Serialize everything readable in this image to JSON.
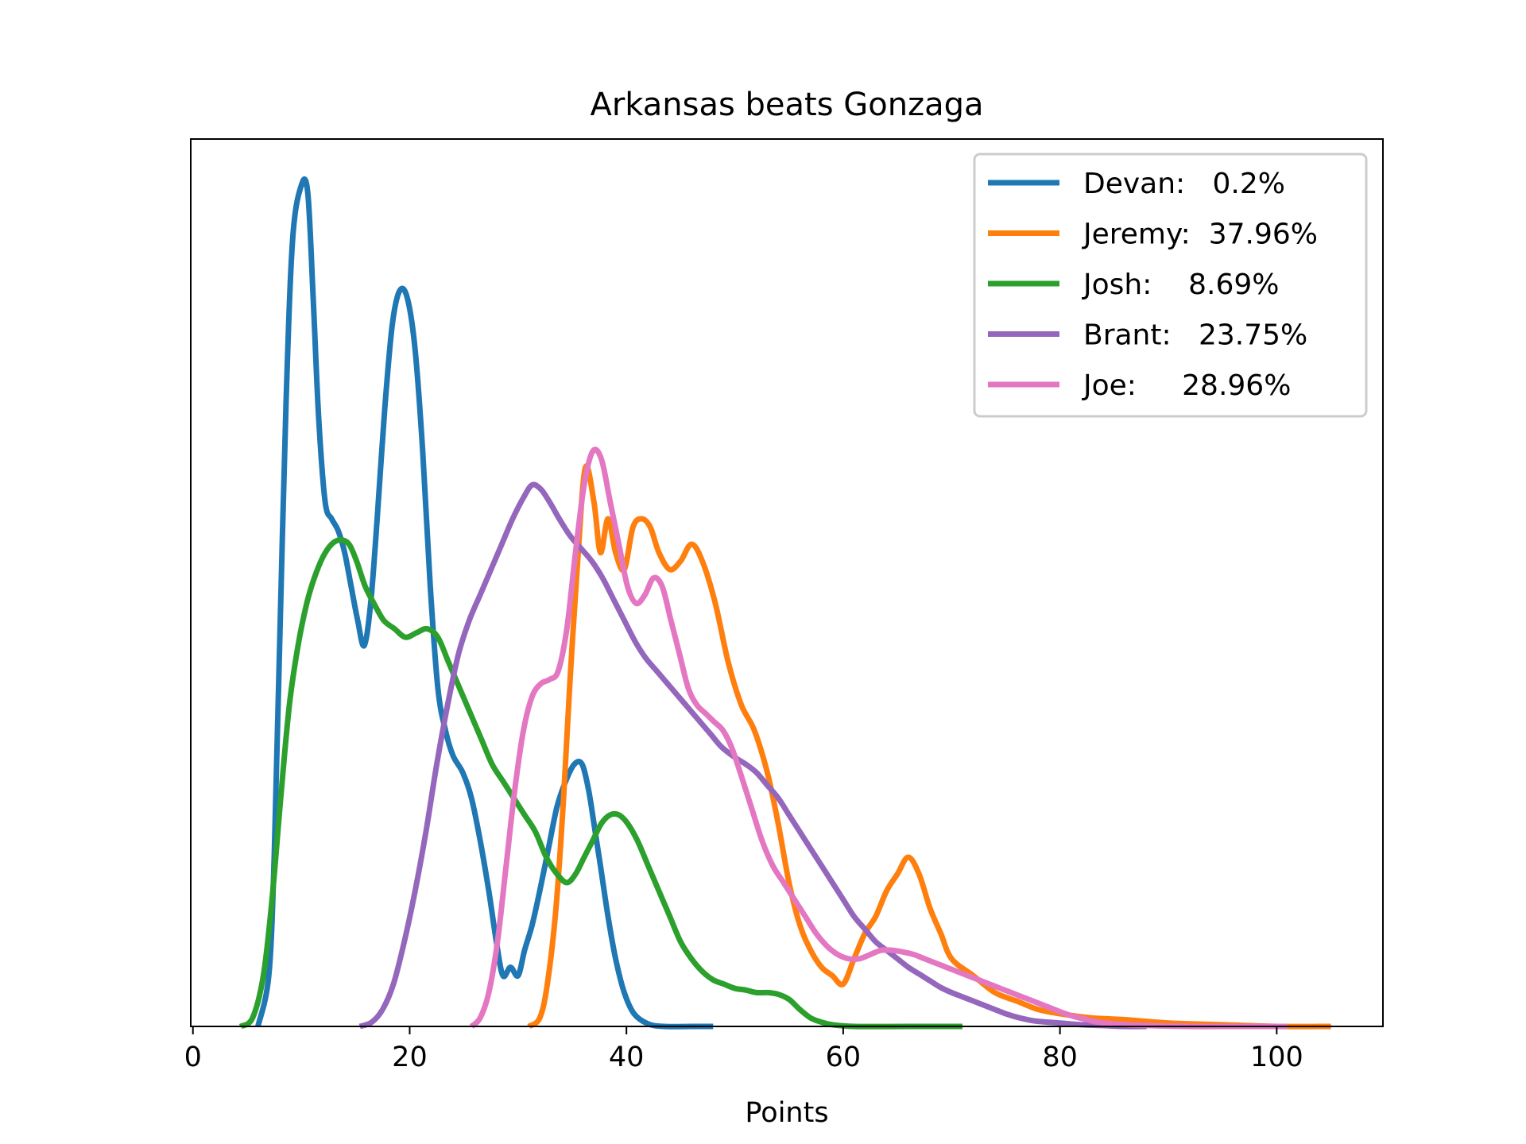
{
  "chart_data": {
    "type": "line",
    "title": "Arkansas beats Gonzaga",
    "xlabel": "Points",
    "ylabel": "",
    "xlim": [
      -0.2,
      109.8
    ],
    "ylim": [
      0,
      1
    ],
    "xticks": [
      0,
      20,
      40,
      60,
      80,
      100
    ],
    "xtick_labels": [
      "0",
      "20",
      "40",
      "60",
      "80",
      "100"
    ],
    "yticks_shown": false,
    "grid": false,
    "legend_position": "top-right",
    "series": [
      {
        "name": "Devan",
        "legend_label": "Devan:   0.2%",
        "color": "#1f77b4",
        "points": [
          [
            6,
            0.0
          ],
          [
            7,
            0.06
          ],
          [
            7.5,
            0.2
          ],
          [
            8,
            0.45
          ],
          [
            8.6,
            0.74
          ],
          [
            9.2,
            0.93
          ],
          [
            10,
            0.994
          ],
          [
            10.6,
            0.985
          ],
          [
            11.1,
            0.86
          ],
          [
            11.6,
            0.72
          ],
          [
            12.2,
            0.62
          ],
          [
            12.8,
            0.6
          ],
          [
            13.4,
            0.586
          ],
          [
            14,
            0.56
          ],
          [
            14.6,
            0.52
          ],
          [
            15.2,
            0.48
          ],
          [
            15.8,
            0.45
          ],
          [
            16.4,
            0.5
          ],
          [
            17,
            0.6
          ],
          [
            17.7,
            0.73
          ],
          [
            18.4,
            0.83
          ],
          [
            19.1,
            0.87
          ],
          [
            19.8,
            0.86
          ],
          [
            20.5,
            0.8
          ],
          [
            21.2,
            0.68
          ],
          [
            21.9,
            0.52
          ],
          [
            22.6,
            0.4
          ],
          [
            23.3,
            0.35
          ],
          [
            24,
            0.32
          ],
          [
            24.9,
            0.3
          ],
          [
            25.7,
            0.27
          ],
          [
            26.5,
            0.22
          ],
          [
            27.3,
            0.16
          ],
          [
            28,
            0.1
          ],
          [
            28.6,
            0.06
          ],
          [
            29.3,
            0.07
          ],
          [
            30,
            0.06
          ],
          [
            30.6,
            0.09
          ],
          [
            31.3,
            0.12
          ],
          [
            32,
            0.16
          ],
          [
            32.8,
            0.21
          ],
          [
            33.6,
            0.26
          ],
          [
            34.4,
            0.29
          ],
          [
            35.2,
            0.31
          ],
          [
            35.9,
            0.31
          ],
          [
            36.5,
            0.28
          ],
          [
            37,
            0.24
          ],
          [
            37.6,
            0.19
          ],
          [
            38.3,
            0.13
          ],
          [
            39,
            0.08
          ],
          [
            39.8,
            0.04
          ],
          [
            40.7,
            0.015
          ],
          [
            42,
            0.003
          ],
          [
            43.5,
            0.0
          ],
          [
            46,
            0.0
          ],
          [
            48,
            0.0
          ]
        ]
      },
      {
        "name": "Jeremy",
        "legend_label": "Jeremy:  37.96%",
        "color": "#ff7f0e",
        "points": [
          [
            31,
            0.0
          ],
          [
            32,
            0.01
          ],
          [
            32.7,
            0.05
          ],
          [
            33.5,
            0.14
          ],
          [
            34.2,
            0.27
          ],
          [
            34.8,
            0.41
          ],
          [
            35.5,
            0.55
          ],
          [
            36.2,
            0.66
          ],
          [
            37,
            0.62
          ],
          [
            37.6,
            0.56
          ],
          [
            38.3,
            0.6
          ],
          [
            39,
            0.56
          ],
          [
            39.8,
            0.54
          ],
          [
            40.6,
            0.59
          ],
          [
            41.4,
            0.6
          ],
          [
            42.2,
            0.59
          ],
          [
            43,
            0.56
          ],
          [
            44,
            0.54
          ],
          [
            45,
            0.55
          ],
          [
            46,
            0.57
          ],
          [
            47,
            0.55
          ],
          [
            48.2,
            0.5
          ],
          [
            49.4,
            0.43
          ],
          [
            50.6,
            0.38
          ],
          [
            51.8,
            0.35
          ],
          [
            53,
            0.3
          ],
          [
            54,
            0.24
          ],
          [
            55,
            0.17
          ],
          [
            56,
            0.12
          ],
          [
            57,
            0.09
          ],
          [
            58,
            0.07
          ],
          [
            59,
            0.06
          ],
          [
            60,
            0.05
          ],
          [
            61,
            0.08
          ],
          [
            62,
            0.11
          ],
          [
            63,
            0.13
          ],
          [
            64,
            0.16
          ],
          [
            65,
            0.18
          ],
          [
            66,
            0.2
          ],
          [
            67,
            0.18
          ],
          [
            68,
            0.14
          ],
          [
            69,
            0.11
          ],
          [
            70,
            0.08
          ],
          [
            72,
            0.06
          ],
          [
            74,
            0.04
          ],
          [
            76,
            0.03
          ],
          [
            78,
            0.02
          ],
          [
            80,
            0.015
          ],
          [
            83,
            0.01
          ],
          [
            86,
            0.008
          ],
          [
            90,
            0.004
          ],
          [
            95,
            0.002
          ],
          [
            100,
            0.0
          ],
          [
            105,
            0.0
          ]
        ]
      },
      {
        "name": "Josh",
        "legend_label": "Josh:    8.69%",
        "color": "#2ca02c",
        "points": [
          [
            4.4,
            0.0
          ],
          [
            5.5,
            0.01
          ],
          [
            6.5,
            0.06
          ],
          [
            7.3,
            0.15
          ],
          [
            8.1,
            0.27
          ],
          [
            8.9,
            0.38
          ],
          [
            9.7,
            0.45
          ],
          [
            10.5,
            0.5
          ],
          [
            11.2,
            0.53
          ],
          [
            12,
            0.555
          ],
          [
            12.8,
            0.57
          ],
          [
            13.6,
            0.575
          ],
          [
            14.4,
            0.57
          ],
          [
            15.1,
            0.55
          ],
          [
            15.9,
            0.52
          ],
          [
            16.7,
            0.5
          ],
          [
            17.6,
            0.48
          ],
          [
            18.6,
            0.47
          ],
          [
            19.6,
            0.46
          ],
          [
            20.6,
            0.465
          ],
          [
            21.6,
            0.47
          ],
          [
            22.6,
            0.46
          ],
          [
            23.6,
            0.43
          ],
          [
            24.6,
            0.4
          ],
          [
            25.6,
            0.37
          ],
          [
            26.6,
            0.34
          ],
          [
            27.6,
            0.31
          ],
          [
            28.6,
            0.29
          ],
          [
            29.6,
            0.27
          ],
          [
            30.6,
            0.25
          ],
          [
            31.6,
            0.23
          ],
          [
            32.6,
            0.2
          ],
          [
            33.6,
            0.18
          ],
          [
            34.5,
            0.17
          ],
          [
            35.3,
            0.18
          ],
          [
            36.1,
            0.2
          ],
          [
            36.9,
            0.22
          ],
          [
            37.7,
            0.24
          ],
          [
            38.5,
            0.25
          ],
          [
            39.3,
            0.25
          ],
          [
            40.1,
            0.24
          ],
          [
            41,
            0.22
          ],
          [
            42,
            0.19
          ],
          [
            43,
            0.16
          ],
          [
            44,
            0.13
          ],
          [
            45,
            0.1
          ],
          [
            46,
            0.08
          ],
          [
            47,
            0.065
          ],
          [
            48,
            0.055
          ],
          [
            49,
            0.05
          ],
          [
            50,
            0.045
          ],
          [
            51,
            0.043
          ],
          [
            52,
            0.04
          ],
          [
            53,
            0.04
          ],
          [
            54,
            0.038
          ],
          [
            55,
            0.032
          ],
          [
            56,
            0.02
          ],
          [
            57,
            0.01
          ],
          [
            58,
            0.005
          ],
          [
            59,
            0.002
          ],
          [
            61,
            0.0
          ],
          [
            66,
            0.0
          ],
          [
            71,
            0.0
          ]
        ]
      },
      {
        "name": "Brant",
        "legend_label": "Brant:   23.75%",
        "color": "#9467bd",
        "points": [
          [
            15.4,
            0.0
          ],
          [
            16.5,
            0.005
          ],
          [
            17.5,
            0.02
          ],
          [
            18.5,
            0.05
          ],
          [
            19.5,
            0.1
          ],
          [
            20.5,
            0.16
          ],
          [
            21.5,
            0.23
          ],
          [
            22.5,
            0.31
          ],
          [
            23.5,
            0.38
          ],
          [
            24.5,
            0.44
          ],
          [
            25.5,
            0.48
          ],
          [
            26.5,
            0.51
          ],
          [
            27.5,
            0.54
          ],
          [
            28.5,
            0.57
          ],
          [
            29.5,
            0.6
          ],
          [
            30.5,
            0.625
          ],
          [
            31.3,
            0.64
          ],
          [
            32.1,
            0.635
          ],
          [
            32.9,
            0.62
          ],
          [
            33.8,
            0.6
          ],
          [
            34.8,
            0.58
          ],
          [
            35.8,
            0.565
          ],
          [
            36.8,
            0.55
          ],
          [
            37.8,
            0.53
          ],
          [
            38.8,
            0.505
          ],
          [
            39.8,
            0.48
          ],
          [
            40.8,
            0.455
          ],
          [
            41.8,
            0.435
          ],
          [
            42.8,
            0.42
          ],
          [
            43.8,
            0.405
          ],
          [
            44.8,
            0.39
          ],
          [
            45.8,
            0.375
          ],
          [
            46.8,
            0.36
          ],
          [
            47.8,
            0.345
          ],
          [
            48.8,
            0.33
          ],
          [
            50,
            0.318
          ],
          [
            51,
            0.31
          ],
          [
            52,
            0.3
          ],
          [
            53,
            0.285
          ],
          [
            54,
            0.27
          ],
          [
            55,
            0.25
          ],
          [
            56,
            0.23
          ],
          [
            57,
            0.21
          ],
          [
            58,
            0.19
          ],
          [
            59,
            0.17
          ],
          [
            60,
            0.15
          ],
          [
            61,
            0.13
          ],
          [
            62,
            0.115
          ],
          [
            63,
            0.1
          ],
          [
            64,
            0.09
          ],
          [
            65,
            0.08
          ],
          [
            66,
            0.07
          ],
          [
            67,
            0.062
          ],
          [
            68,
            0.054
          ],
          [
            69,
            0.046
          ],
          [
            70,
            0.04
          ],
          [
            71,
            0.035
          ],
          [
            72,
            0.03
          ],
          [
            73,
            0.025
          ],
          [
            74,
            0.02
          ],
          [
            75,
            0.015
          ],
          [
            76,
            0.011
          ],
          [
            77,
            0.008
          ],
          [
            78,
            0.006
          ],
          [
            80,
            0.004
          ],
          [
            82,
            0.002
          ],
          [
            84,
            0.001
          ],
          [
            86,
            0.0
          ],
          [
            88,
            0.0
          ]
        ]
      },
      {
        "name": "Joe",
        "legend_label": "Joe:     28.96%",
        "color": "#e377c2",
        "points": [
          [
            25.7,
            0.0
          ],
          [
            26.5,
            0.01
          ],
          [
            27.3,
            0.04
          ],
          [
            28.1,
            0.1
          ],
          [
            28.9,
            0.19
          ],
          [
            29.7,
            0.28
          ],
          [
            30.5,
            0.35
          ],
          [
            31.3,
            0.39
          ],
          [
            32.1,
            0.405
          ],
          [
            32.9,
            0.41
          ],
          [
            33.7,
            0.42
          ],
          [
            34.5,
            0.47
          ],
          [
            35.3,
            0.56
          ],
          [
            36.1,
            0.64
          ],
          [
            36.9,
            0.68
          ],
          [
            37.7,
            0.67
          ],
          [
            38.5,
            0.62
          ],
          [
            39.3,
            0.57
          ],
          [
            40.1,
            0.52
          ],
          [
            40.9,
            0.5
          ],
          [
            41.7,
            0.51
          ],
          [
            42.5,
            0.53
          ],
          [
            43.3,
            0.52
          ],
          [
            44.1,
            0.48
          ],
          [
            44.9,
            0.44
          ],
          [
            45.7,
            0.4
          ],
          [
            46.5,
            0.38
          ],
          [
            47.3,
            0.37
          ],
          [
            48.1,
            0.36
          ],
          [
            48.9,
            0.35
          ],
          [
            49.7,
            0.33
          ],
          [
            50.5,
            0.3
          ],
          [
            51.5,
            0.26
          ],
          [
            52.5,
            0.22
          ],
          [
            53.5,
            0.19
          ],
          [
            54.5,
            0.17
          ],
          [
            55.5,
            0.15
          ],
          [
            56.5,
            0.13
          ],
          [
            57.5,
            0.11
          ],
          [
            58.5,
            0.095
          ],
          [
            59.5,
            0.085
          ],
          [
            60.5,
            0.08
          ],
          [
            61.5,
            0.08
          ],
          [
            62.5,
            0.085
          ],
          [
            63.5,
            0.09
          ],
          [
            64.5,
            0.09
          ],
          [
            65.5,
            0.088
          ],
          [
            66.5,
            0.085
          ],
          [
            67.5,
            0.08
          ],
          [
            68.5,
            0.075
          ],
          [
            69.5,
            0.07
          ],
          [
            70.5,
            0.065
          ],
          [
            71.5,
            0.06
          ],
          [
            72.5,
            0.055
          ],
          [
            73.5,
            0.05
          ],
          [
            74.5,
            0.045
          ],
          [
            75.5,
            0.04
          ],
          [
            76.5,
            0.035
          ],
          [
            77.5,
            0.03
          ],
          [
            78.5,
            0.025
          ],
          [
            79.5,
            0.02
          ],
          [
            80.5,
            0.015
          ],
          [
            81.5,
            0.011
          ],
          [
            82.5,
            0.008
          ],
          [
            83.5,
            0.005
          ],
          [
            85,
            0.003
          ],
          [
            88,
            0.001
          ],
          [
            92,
            0.0
          ],
          [
            96,
            0.0
          ],
          [
            101,
            0.0
          ]
        ]
      }
    ]
  }
}
